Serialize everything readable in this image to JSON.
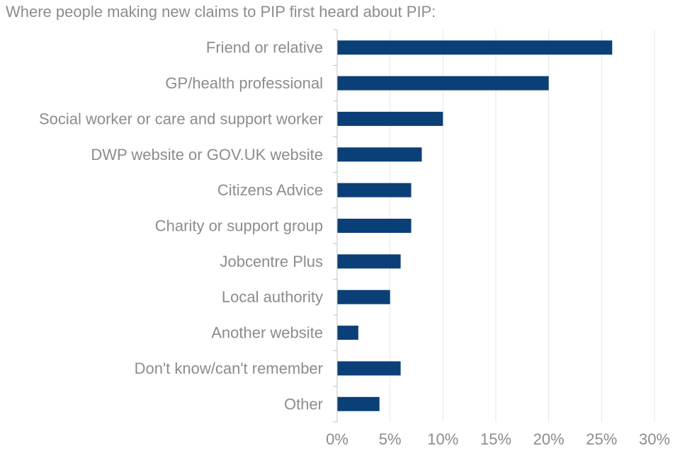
{
  "chart_data": {
    "type": "bar",
    "orientation": "horizontal",
    "title": "Where people making new claims to PIP first heard about PIP:",
    "categories": [
      "Friend or relative",
      "GP/health professional",
      "Social worker or care and support worker",
      "DWP website or GOV.UK website",
      "Citizens Advice",
      "Charity or support group",
      "Jobcentre Plus",
      "Local authority",
      "Another website",
      "Don't know/can't remember",
      "Other"
    ],
    "values": [
      26,
      20,
      10,
      8,
      7,
      7,
      6,
      5,
      2,
      6,
      4
    ],
    "xlim": [
      0,
      30
    ],
    "ticks": [
      0,
      5,
      10,
      15,
      20,
      25,
      30
    ],
    "tick_labels": [
      "0%",
      "5%",
      "10%",
      "15%",
      "20%",
      "25%",
      "30%"
    ],
    "xlabel": "",
    "ylabel": "",
    "grid": "vertical",
    "bar_color": "#0b3f78",
    "grid_color": "#e6e6e6",
    "axis_color": "#bfbfbf",
    "text_color": "#8c8c8c"
  }
}
